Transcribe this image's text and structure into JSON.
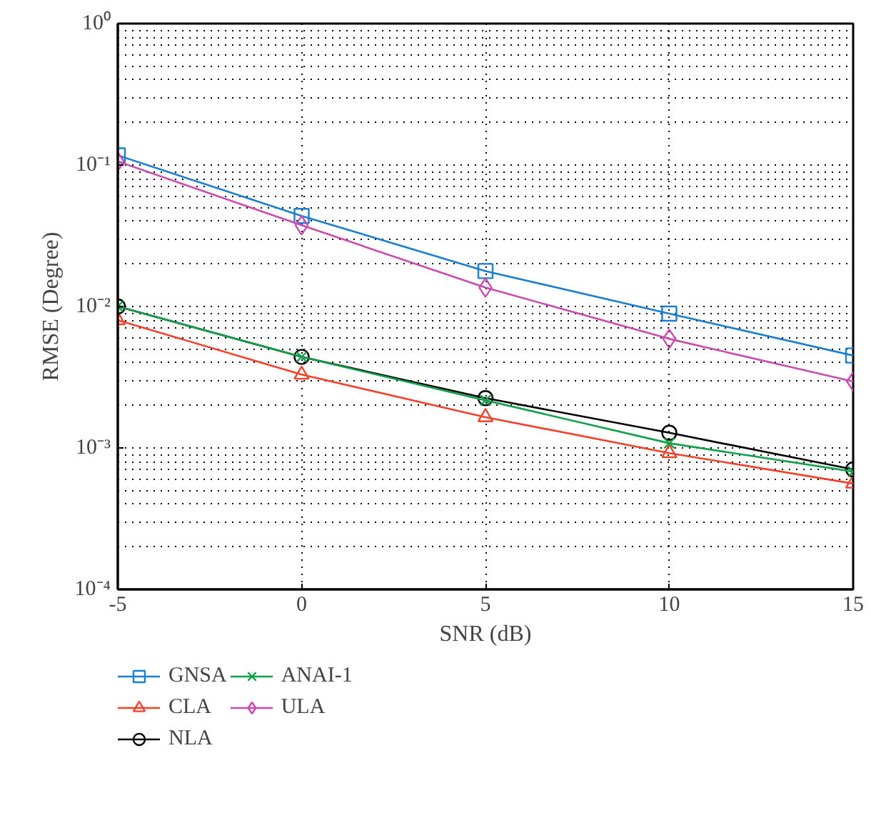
{
  "chart_data": {
    "type": "line",
    "xlabel": "SNR (dB)",
    "ylabel": "RMSE (Degree)",
    "x": [
      -5,
      0,
      5,
      10,
      15
    ],
    "xlim": [
      -5,
      15
    ],
    "xticks": [
      -5,
      0,
      5,
      10,
      15
    ],
    "ylim": [
      0.0001,
      1
    ],
    "yticks": [
      {
        "value": 0.0001,
        "label": "10⁻⁴"
      },
      {
        "value": 0.001,
        "label": "10⁻³"
      },
      {
        "value": 0.01,
        "label": "10⁻²"
      },
      {
        "value": 0.1,
        "label": "10⁻¹"
      },
      {
        "value": 1,
        "label": "10⁰"
      }
    ],
    "log": "y",
    "grid": true,
    "legend": "bottom",
    "line_style": "solid",
    "series": [
      {
        "name": "GNSA",
        "color": "#1a7fd0",
        "marker": "square",
        "values": [
          0.117,
          0.0437,
          0.0178,
          0.0089,
          0.0045
        ]
      },
      {
        "name": "CLA",
        "color": "#f5412a",
        "marker": "triangle",
        "values": [
          0.008,
          0.0033,
          0.00165,
          0.00092,
          0.00056
        ]
      },
      {
        "name": "NLA",
        "color": "#000000",
        "marker": "circle",
        "values": [
          0.01,
          0.0044,
          0.00225,
          0.00128,
          0.000705
        ]
      },
      {
        "name": "ANAI-1",
        "color": "#12a04a",
        "marker": "cross",
        "values": [
          0.01,
          0.0044,
          0.00217,
          0.00108,
          0.00068
        ]
      },
      {
        "name": "ULA",
        "color": "#cc4aae",
        "marker": "diamond",
        "values": [
          0.106,
          0.0375,
          0.0136,
          0.0059,
          0.00295
        ]
      }
    ]
  }
}
